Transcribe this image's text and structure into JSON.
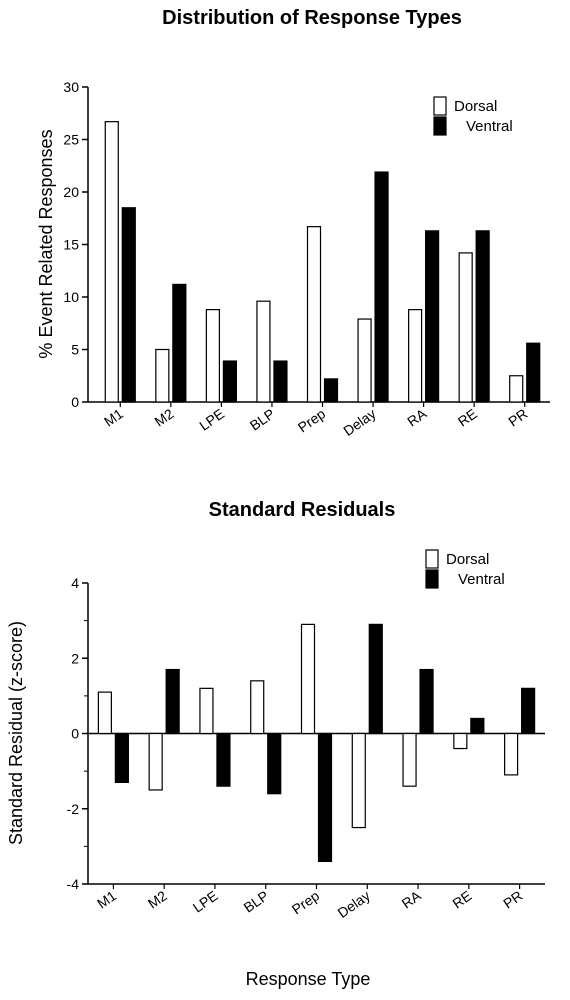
{
  "chart_data": [
    {
      "type": "bar",
      "title": "Distribution of Response Types",
      "xlabel": "",
      "ylabel": "%  Event Related Responses",
      "ylim": [
        0,
        30
      ],
      "yticks": [
        0,
        5,
        10,
        15,
        20,
        25,
        30
      ],
      "categories": [
        "M1",
        "M2",
        "LPE",
        "BLP",
        "Prep",
        "Delay",
        "RA",
        "RE",
        "PR"
      ],
      "series": [
        {
          "name": "Dorsal",
          "color": "#ffffff",
          "values": [
            26.7,
            5.0,
            8.8,
            9.6,
            16.7,
            7.9,
            8.8,
            14.2,
            2.5
          ]
        },
        {
          "name": "Ventral",
          "color": "#000000",
          "values": [
            18.5,
            11.2,
            3.9,
            3.9,
            2.2,
            21.9,
            16.3,
            16.3,
            5.6
          ]
        }
      ],
      "legend_position": "top-right",
      "grid": false
    },
    {
      "type": "bar",
      "title": "Standard Residuals",
      "xlabel": "Response Type",
      "ylabel": "Standard Residual (z-score)",
      "ylim": [
        -4,
        4
      ],
      "yticks": [
        -4,
        -2,
        0,
        2,
        4
      ],
      "categories": [
        "M1",
        "M2",
        "LPE",
        "BLP",
        "Prep",
        "Delay",
        "RA",
        "RE",
        "PR"
      ],
      "series": [
        {
          "name": "Dorsal",
          "color": "#ffffff",
          "values": [
            1.1,
            -1.5,
            1.2,
            1.4,
            2.9,
            -2.5,
            -1.4,
            -0.4,
            -1.1
          ]
        },
        {
          "name": "Ventral",
          "color": "#000000",
          "values": [
            -1.3,
            1.7,
            -1.4,
            -1.6,
            -3.4,
            2.9,
            1.7,
            0.4,
            1.2
          ]
        }
      ],
      "legend_position": "top-right",
      "grid": false
    }
  ]
}
